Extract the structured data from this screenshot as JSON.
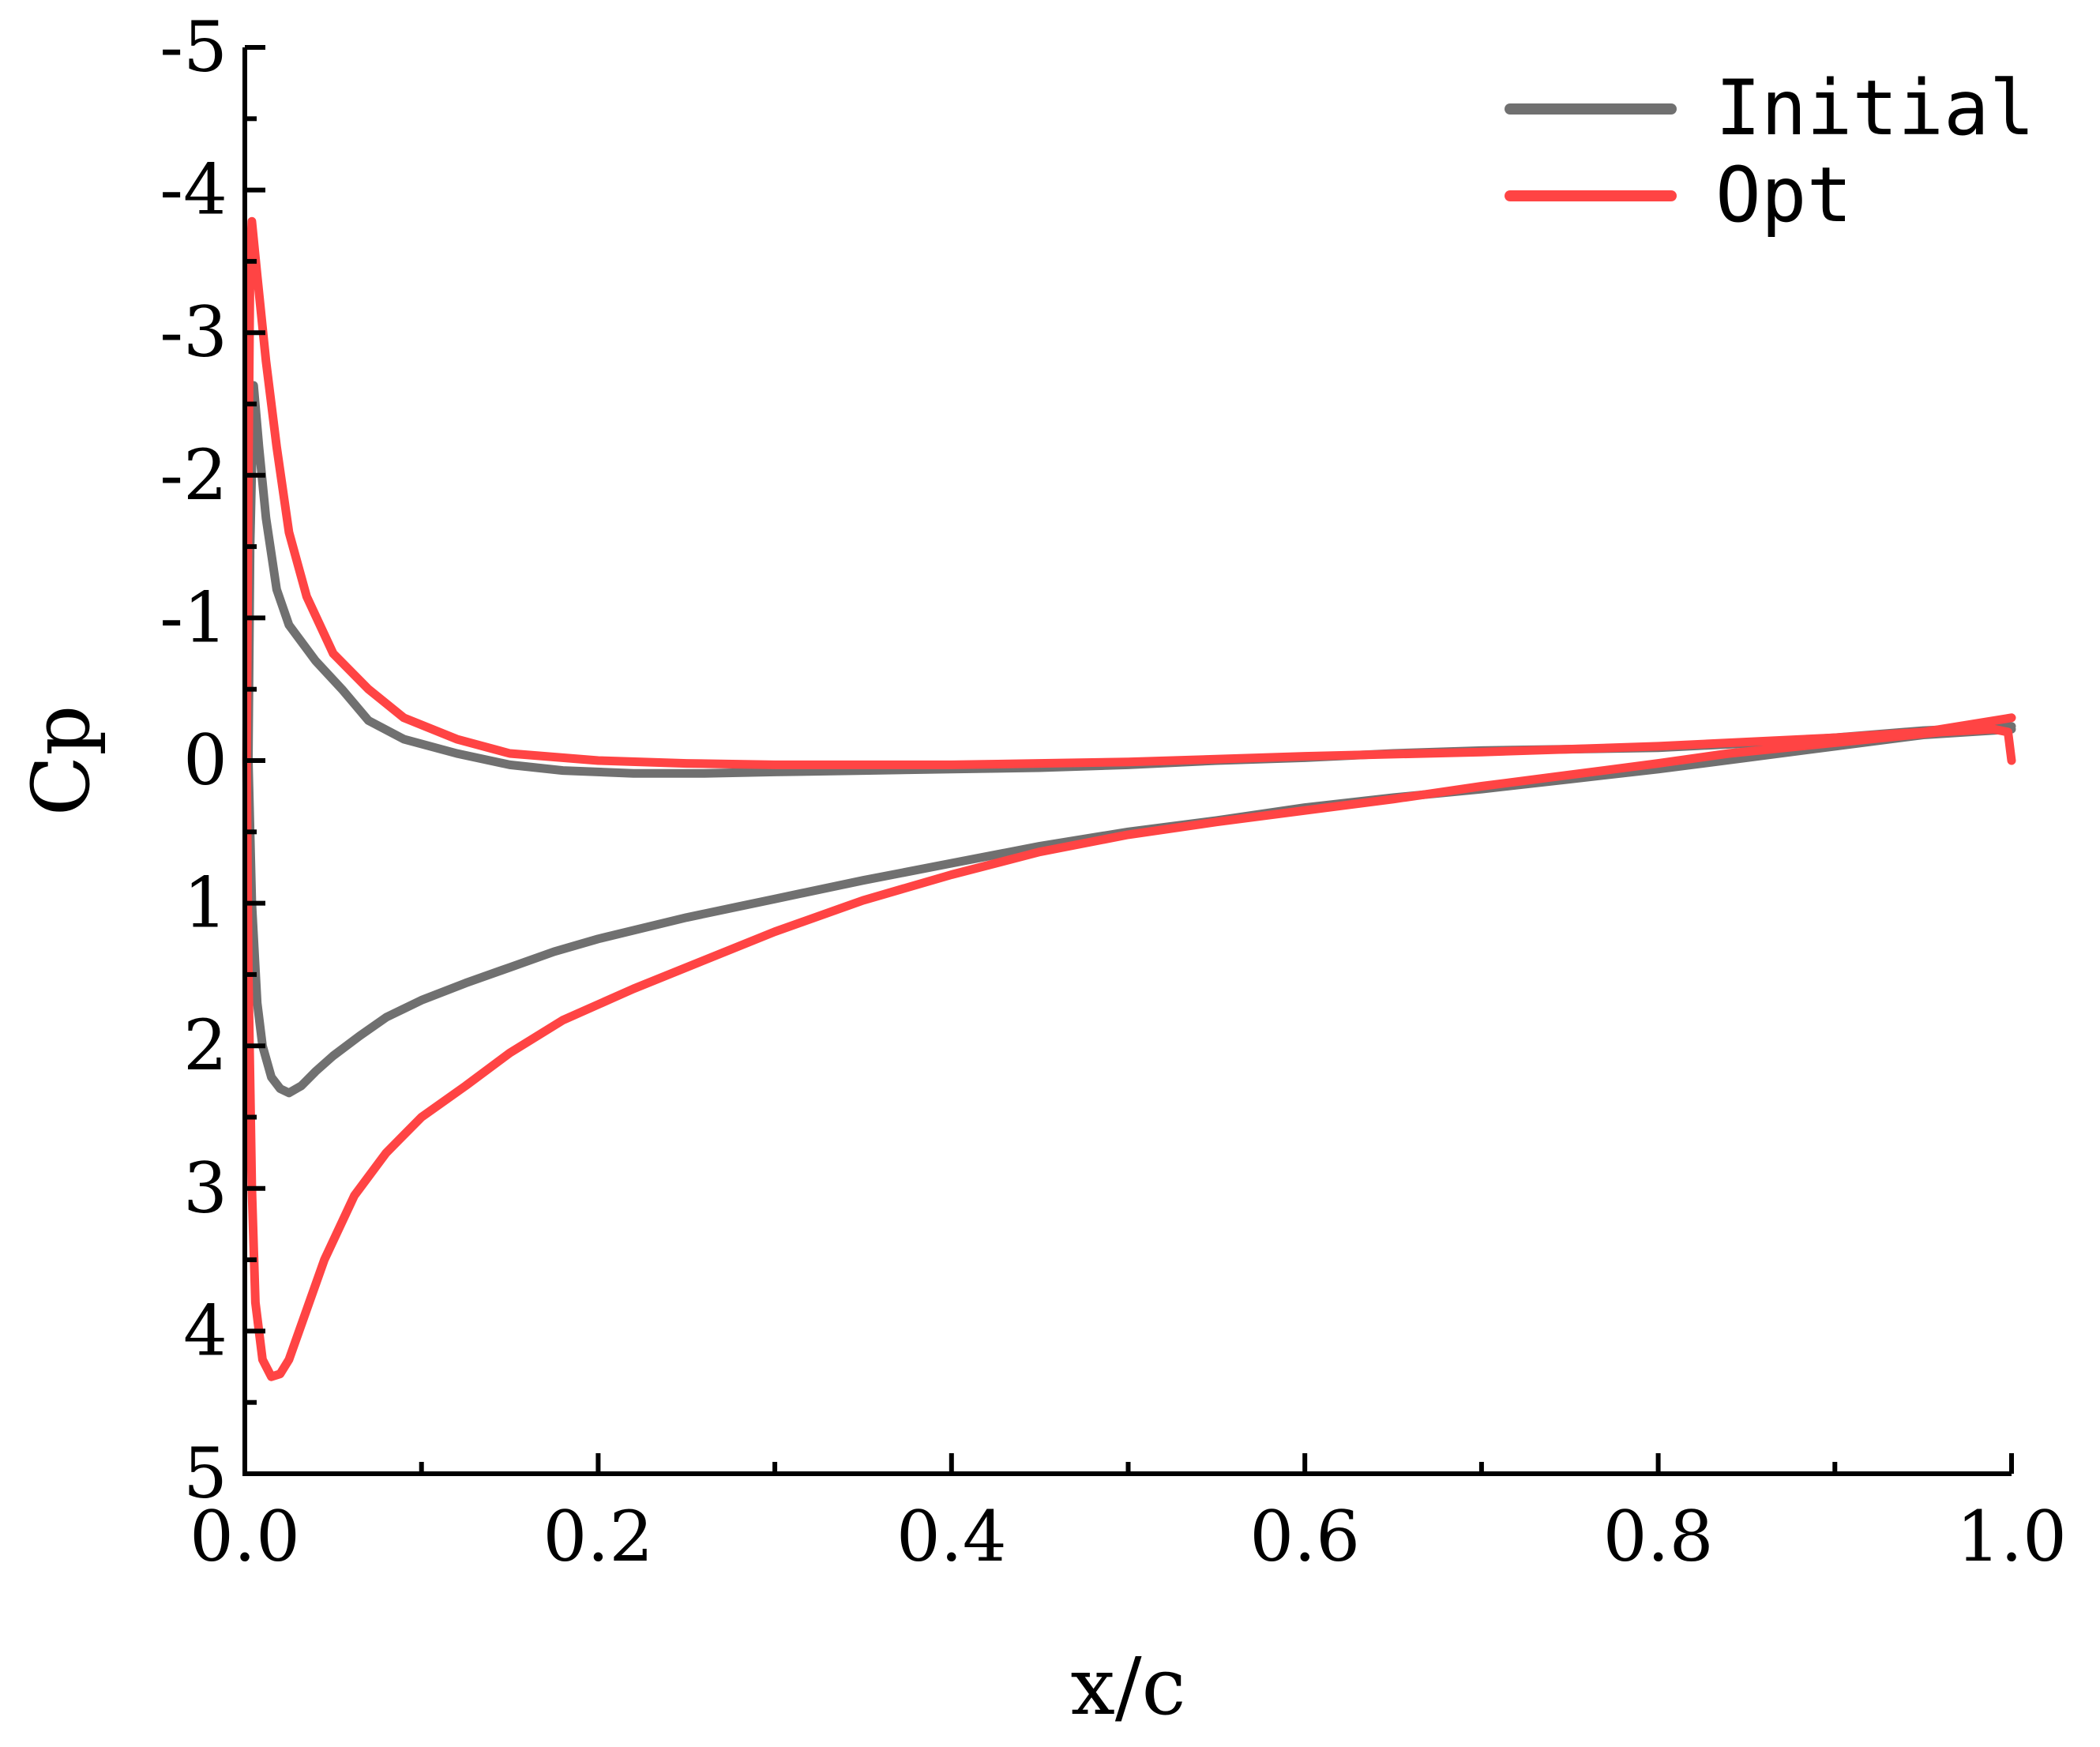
{
  "chart_data": {
    "type": "line",
    "xlabel": "x/c",
    "ylabel": "Cp",
    "xlim": [
      0.0,
      1.0
    ],
    "ylim": [
      -5,
      5
    ],
    "y_inverted": true,
    "grid": false,
    "legend_position": "top-right",
    "x_ticks": [
      "0.0",
      "0.2",
      "0.4",
      "0.6",
      "0.8",
      "1.0"
    ],
    "x_tick_values": [
      0.0,
      0.2,
      0.4,
      0.6,
      0.8,
      1.0
    ],
    "y_ticks": [
      "-5",
      "-4",
      "-3",
      "-2",
      "-1",
      "0",
      "1",
      "2",
      "3",
      "4",
      "5"
    ],
    "y_tick_values": [
      -5,
      -4,
      -3,
      -2,
      -1,
      0,
      1,
      2,
      3,
      4,
      5
    ],
    "series": [
      {
        "name": "Initial",
        "color": "#707070",
        "points": [
          [
            1.0,
            -0.22
          ],
          [
            0.95,
            -0.18
          ],
          [
            0.9,
            -0.1
          ],
          [
            0.85,
            -0.02
          ],
          [
            0.8,
            0.06
          ],
          [
            0.75,
            0.13
          ],
          [
            0.7,
            0.2
          ],
          [
            0.65,
            0.26
          ],
          [
            0.6,
            0.33
          ],
          [
            0.55,
            0.42
          ],
          [
            0.5,
            0.5
          ],
          [
            0.45,
            0.6
          ],
          [
            0.4,
            0.72
          ],
          [
            0.35,
            0.84
          ],
          [
            0.3,
            0.97
          ],
          [
            0.25,
            1.1
          ],
          [
            0.2,
            1.25
          ],
          [
            0.175,
            1.34
          ],
          [
            0.15,
            1.45
          ],
          [
            0.125,
            1.56
          ],
          [
            0.1,
            1.68
          ],
          [
            0.08,
            1.8
          ],
          [
            0.065,
            1.93
          ],
          [
            0.05,
            2.07
          ],
          [
            0.04,
            2.18
          ],
          [
            0.032,
            2.28
          ],
          [
            0.025,
            2.33
          ],
          [
            0.02,
            2.3
          ],
          [
            0.015,
            2.22
          ],
          [
            0.01,
            2.0
          ],
          [
            0.007,
            1.7
          ],
          [
            0.004,
            1.0
          ],
          [
            0.002,
            0.0
          ],
          [
            0.003,
            -1.5
          ],
          [
            0.005,
            -2.63
          ],
          [
            0.008,
            -2.2
          ],
          [
            0.012,
            -1.7
          ],
          [
            0.018,
            -1.2
          ],
          [
            0.025,
            -0.95
          ],
          [
            0.04,
            -0.7
          ],
          [
            0.055,
            -0.5
          ],
          [
            0.07,
            -0.28
          ],
          [
            0.09,
            -0.15
          ],
          [
            0.12,
            -0.05
          ],
          [
            0.15,
            0.03
          ],
          [
            0.18,
            0.07
          ],
          [
            0.22,
            0.09
          ],
          [
            0.26,
            0.09
          ],
          [
            0.3,
            0.08
          ],
          [
            0.35,
            0.07
          ],
          [
            0.4,
            0.06
          ],
          [
            0.45,
            0.05
          ],
          [
            0.5,
            0.03
          ],
          [
            0.55,
            0.0
          ],
          [
            0.6,
            -0.02
          ],
          [
            0.65,
            -0.05
          ],
          [
            0.7,
            -0.07
          ],
          [
            0.75,
            -0.08
          ],
          [
            0.8,
            -0.09
          ],
          [
            0.85,
            -0.12
          ],
          [
            0.9,
            -0.16
          ],
          [
            0.95,
            -0.21
          ],
          [
            1.0,
            -0.24
          ]
        ]
      },
      {
        "name": "Opt",
        "color": "#ff4444",
        "points": [
          [
            1.0,
            0.0
          ],
          [
            0.998,
            -0.2
          ],
          [
            0.99,
            -0.22
          ],
          [
            0.96,
            -0.2
          ],
          [
            0.92,
            -0.15
          ],
          [
            0.88,
            -0.1
          ],
          [
            0.84,
            -0.05
          ],
          [
            0.8,
            0.02
          ],
          [
            0.75,
            0.1
          ],
          [
            0.7,
            0.18
          ],
          [
            0.65,
            0.27
          ],
          [
            0.6,
            0.35
          ],
          [
            0.55,
            0.43
          ],
          [
            0.5,
            0.52
          ],
          [
            0.45,
            0.64
          ],
          [
            0.4,
            0.8
          ],
          [
            0.35,
            0.98
          ],
          [
            0.3,
            1.2
          ],
          [
            0.26,
            1.4
          ],
          [
            0.22,
            1.6
          ],
          [
            0.18,
            1.82
          ],
          [
            0.15,
            2.05
          ],
          [
            0.125,
            2.28
          ],
          [
            0.1,
            2.5
          ],
          [
            0.08,
            2.75
          ],
          [
            0.062,
            3.05
          ],
          [
            0.045,
            3.5
          ],
          [
            0.035,
            3.85
          ],
          [
            0.025,
            4.2
          ],
          [
            0.02,
            4.3
          ],
          [
            0.015,
            4.32
          ],
          [
            0.01,
            4.2
          ],
          [
            0.006,
            3.8
          ],
          [
            0.004,
            3.0
          ],
          [
            0.002,
            1.5
          ],
          [
            0.001,
            0.0
          ],
          [
            0.002,
            -2.0
          ],
          [
            0.003,
            -3.5
          ],
          [
            0.004,
            -3.78
          ],
          [
            0.007,
            -3.4
          ],
          [
            0.012,
            -2.8
          ],
          [
            0.018,
            -2.2
          ],
          [
            0.025,
            -1.6
          ],
          [
            0.035,
            -1.15
          ],
          [
            0.05,
            -0.75
          ],
          [
            0.07,
            -0.5
          ],
          [
            0.09,
            -0.3
          ],
          [
            0.12,
            -0.15
          ],
          [
            0.15,
            -0.05
          ],
          [
            0.2,
            0.0
          ],
          [
            0.25,
            0.02
          ],
          [
            0.3,
            0.03
          ],
          [
            0.4,
            0.03
          ],
          [
            0.5,
            0.01
          ],
          [
            0.6,
            -0.03
          ],
          [
            0.7,
            -0.06
          ],
          [
            0.8,
            -0.1
          ],
          [
            0.9,
            -0.16
          ],
          [
            0.95,
            -0.2
          ],
          [
            1.0,
            -0.3
          ]
        ]
      }
    ]
  }
}
